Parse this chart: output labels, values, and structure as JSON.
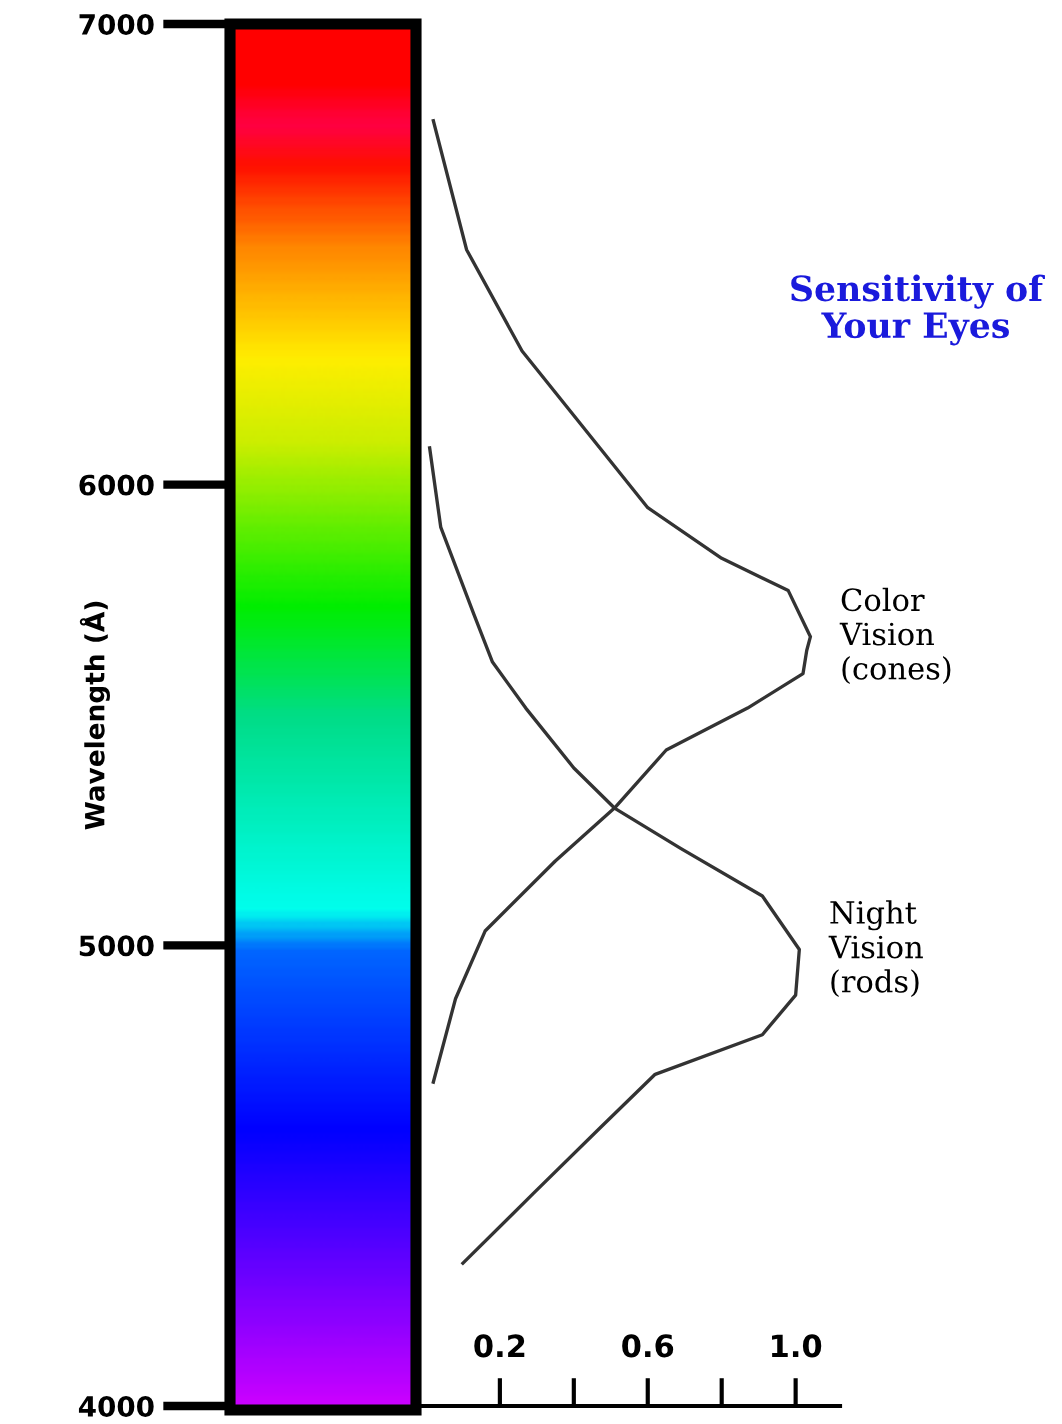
{
  "chart_data": {
    "type": "line",
    "title": "Sensitivity of Your Eyes",
    "ylabel": "Wavelength (Å)",
    "series": [
      {
        "name": "Color Vision (cones)",
        "color": "#333333",
        "x": [
          0.02,
          0.11,
          0.26,
          0.47,
          0.6,
          0.8,
          0.98,
          1.04,
          1.03,
          1.02,
          0.87,
          0.65,
          0.51,
          0.35,
          0.16,
          0.08,
          0.02
        ],
        "values": [
          6790,
          6510,
          6290,
          6080,
          5950,
          5840,
          5770,
          5670,
          5640,
          5590,
          5515,
          5424,
          5298,
          5183,
          5031,
          4884,
          4703
        ]
      },
      {
        "name": "Night Vision (rods)",
        "color": "#333333",
        "x": [
          0.01,
          0.04,
          0.13,
          0.18,
          0.27,
          0.4,
          0.51,
          0.69,
          0.91,
          1.01,
          1.0,
          0.91,
          0.62,
          0.47,
          0.29,
          0.1
        ],
        "values": [
          6080,
          5908,
          5718,
          5615,
          5515,
          5385,
          5298,
          5210,
          5107,
          4991,
          4892,
          4806,
          4720,
          4603,
          4461,
          4310
        ]
      }
    ],
    "xlim": [
      -0.53,
      1.12
    ],
    "xticks": [
      0.2,
      {
        "value": 0.4,
        "label": null
      },
      0.6,
      {
        "value": 0.8,
        "label": null
      },
      {
        "value": 1.0,
        "label": "1.0"
      }
    ],
    "ylim": [
      4000,
      7000
    ],
    "yticks": [
      4000,
      5000,
      6000,
      7000
    ],
    "grid": false,
    "legend": false,
    "marker": "none",
    "line_style": "solid"
  }
}
